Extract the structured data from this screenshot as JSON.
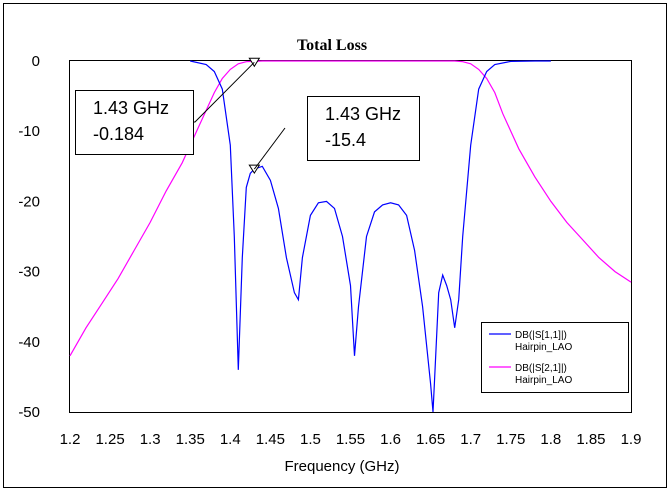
{
  "chart_data": {
    "type": "line",
    "title": "Total Loss",
    "xlabel": "Frequency (GHz)",
    "ylabel": "",
    "xlim": [
      1.2,
      1.9
    ],
    "ylim": [
      -50,
      0
    ],
    "x_ticks": [
      "1.2",
      "1.25",
      "1.3",
      "1.35",
      "1.4",
      "1.45",
      "1.5",
      "1.55",
      "1.6",
      "1.65",
      "1.7",
      "1.75",
      "1.8",
      "1.85",
      "1.9"
    ],
    "y_ticks": [
      "0",
      "-10",
      "-20",
      "-30",
      "-40",
      "-50"
    ],
    "grid": false,
    "legend_position": "bottom-right",
    "series": [
      {
        "name": "DB(|S[1,1]|)",
        "sub": "Hairpin_LAO",
        "color": "#0000ff",
        "x": [
          1.35,
          1.37,
          1.38,
          1.39,
          1.4,
          1.405,
          1.41,
          1.415,
          1.42,
          1.425,
          1.43,
          1.44,
          1.45,
          1.46,
          1.47,
          1.48,
          1.485,
          1.49,
          1.5,
          1.51,
          1.52,
          1.53,
          1.54,
          1.55,
          1.555,
          1.56,
          1.57,
          1.58,
          1.59,
          1.6,
          1.61,
          1.62,
          1.63,
          1.64,
          1.65,
          1.653,
          1.655,
          1.66,
          1.665,
          1.67,
          1.675,
          1.68,
          1.685,
          1.69,
          1.7,
          1.71,
          1.72,
          1.73,
          1.75,
          1.78,
          1.8
        ],
        "y": [
          0,
          -0.5,
          -1.5,
          -4,
          -12,
          -25,
          -44,
          -28,
          -18,
          -16,
          -15.4,
          -15,
          -17,
          -21,
          -28,
          -33,
          -34,
          -28,
          -22,
          -20.2,
          -20,
          -21,
          -25,
          -32,
          -42,
          -35,
          -25,
          -21.5,
          -20.5,
          -20.2,
          -20.5,
          -22,
          -27,
          -35,
          -46,
          -50,
          -45,
          -33,
          -30.5,
          -32,
          -34,
          -38,
          -34,
          -25,
          -12,
          -4,
          -1.5,
          -0.5,
          -0.05,
          0,
          0
        ]
      },
      {
        "name": "DB(|S[2,1]|)",
        "sub": "Hairpin_LAO",
        "color": "#ff00ff",
        "x": [
          1.2,
          1.22,
          1.24,
          1.26,
          1.28,
          1.3,
          1.32,
          1.34,
          1.36,
          1.38,
          1.39,
          1.4,
          1.41,
          1.42,
          1.44,
          1.5,
          1.6,
          1.68,
          1.69,
          1.7,
          1.71,
          1.72,
          1.73,
          1.74,
          1.76,
          1.78,
          1.8,
          1.82,
          1.84,
          1.86,
          1.88,
          1.9
        ],
        "y": [
          -42,
          -38,
          -34.5,
          -31,
          -27,
          -23,
          -18.5,
          -14.5,
          -9.5,
          -4.5,
          -2.5,
          -1.2,
          -0.4,
          -0.1,
          0,
          0,
          0,
          0,
          -0.1,
          -0.4,
          -1.2,
          -2.5,
          -4.5,
          -7.5,
          -12.5,
          -16.5,
          -20,
          -23,
          -25.5,
          -28,
          -30,
          -31.5
        ]
      }
    ],
    "markers": [
      {
        "x": 1.43,
        "y": -0.184,
        "line1": "1.43 GHz",
        "line2": "-0.184"
      },
      {
        "x": 1.43,
        "y": -15.4,
        "line1": "1.43 GHz",
        "line2": "-15.4"
      }
    ]
  }
}
